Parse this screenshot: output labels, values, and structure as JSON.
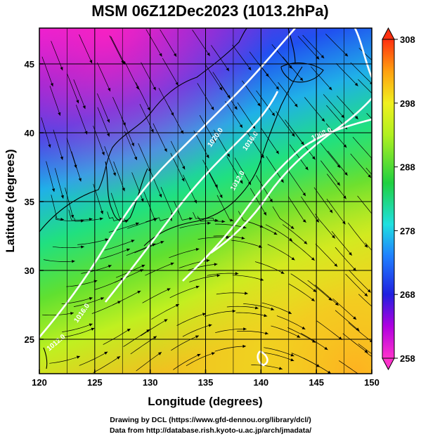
{
  "title": "MSM 06Z12Dec2023 (1013.2hPa)",
  "x_axis": {
    "label": "Longitude (degrees)",
    "range": [
      120,
      150
    ],
    "ticks": [
      "120",
      "125",
      "130",
      "135",
      "140",
      "145",
      "150"
    ]
  },
  "y_axis": {
    "label": "Latitude  (degrees)",
    "range": [
      22.5,
      47.6
    ],
    "ticks": [
      "25",
      "30",
      "35",
      "40",
      "45"
    ]
  },
  "colorbar": {
    "range": [
      258,
      308
    ],
    "ticks": [
      "258",
      "268",
      "278",
      "288",
      "298",
      "308"
    ]
  },
  "contours": {
    "color": "#ffffff",
    "labels": [
      "1020.0",
      "1016.0",
      "1012.0",
      "1008.0",
      "1016.0",
      "1012.0"
    ]
  },
  "credits": {
    "line1": "Drawing by DCL (https://www.gfd-dennou.org/library/dcl/)",
    "line2": "Data from http://database.rish.kyoto-u.ac.jp/arch/jmadata/"
  }
}
